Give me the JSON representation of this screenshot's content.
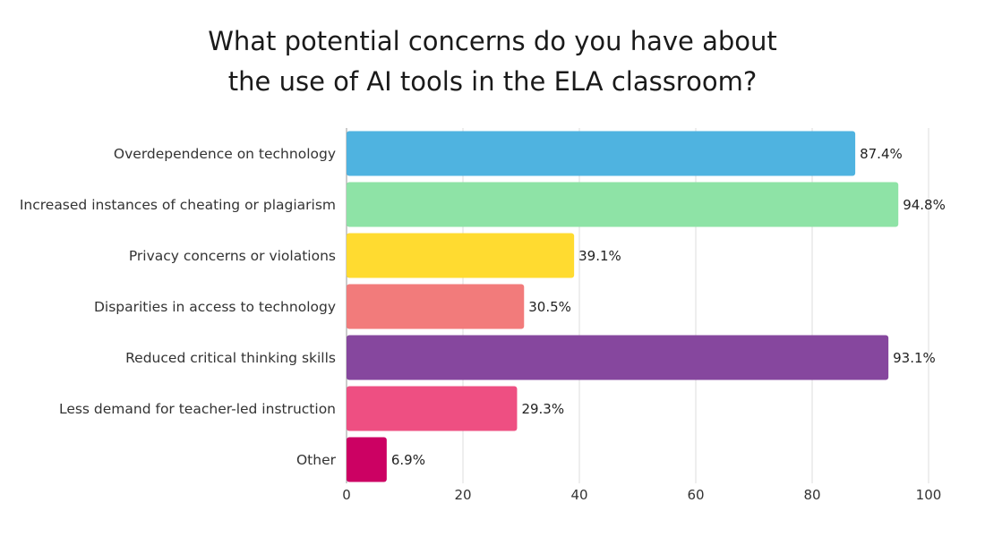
{
  "chart_data": {
    "type": "bar",
    "orientation": "horizontal",
    "title_lines": [
      "What potential concerns do you have about",
      "the use of AI tools in the ELA classroom?"
    ],
    "categories": [
      "Overdependence on technology",
      "Increased instances of cheating or plagiarism",
      "Privacy concerns or violations",
      "Disparities in access to technology",
      "Reduced critical thinking skills",
      "Less demand for teacher-led instruction",
      "Other"
    ],
    "values": [
      87.4,
      94.8,
      39.1,
      30.5,
      93.1,
      29.3,
      6.9
    ],
    "value_labels": [
      "87.4%",
      "94.8%",
      "39.1%",
      "30.5%",
      "93.1%",
      "29.3%",
      "6.9%"
    ],
    "colors": [
      "#4FB3E0",
      "#8EE3A6",
      "#FFDB30",
      "#F27B7B",
      "#86479E",
      "#EE4F82",
      "#CC0163"
    ],
    "xlim": [
      0,
      100
    ],
    "xticks": [
      0,
      20,
      40,
      60,
      80,
      100
    ],
    "tick_labels": [
      "0",
      "20",
      "40",
      "60",
      "80",
      "100"
    ],
    "xlabel": "",
    "ylabel": "",
    "grid": true,
    "legend": "none"
  }
}
